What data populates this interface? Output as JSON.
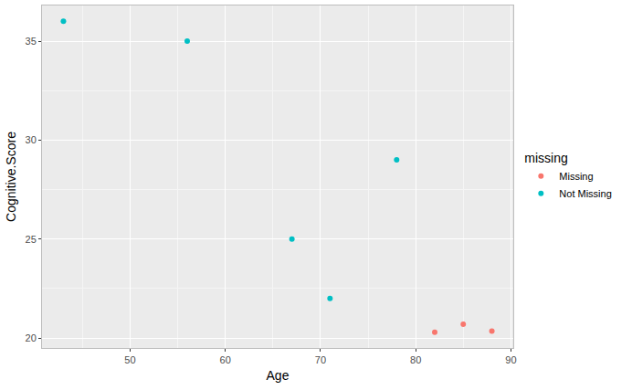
{
  "chart_data": {
    "type": "scatter",
    "x_label": "Age",
    "y_label": "Cognitive.Score",
    "legend_title": "missing",
    "legend": "right",
    "grid": true,
    "marker": "circle",
    "xlim": [
      40.75,
      90.25
    ],
    "xticks": [
      50,
      60,
      70,
      80,
      90
    ],
    "ylim": [
      19.5,
      36.8
    ],
    "yticks": [
      20,
      25,
      30,
      35
    ],
    "series": [
      {
        "name": "Missing",
        "color": "#F8766D",
        "x": [
          82,
          85,
          88
        ],
        "values": [
          20.3,
          20.7,
          20.35
        ]
      },
      {
        "name": "Not Missing",
        "color": "#00BFC4",
        "x": [
          43,
          56,
          67,
          71,
          78
        ],
        "values": [
          36,
          35,
          25,
          22,
          29
        ]
      }
    ]
  }
}
